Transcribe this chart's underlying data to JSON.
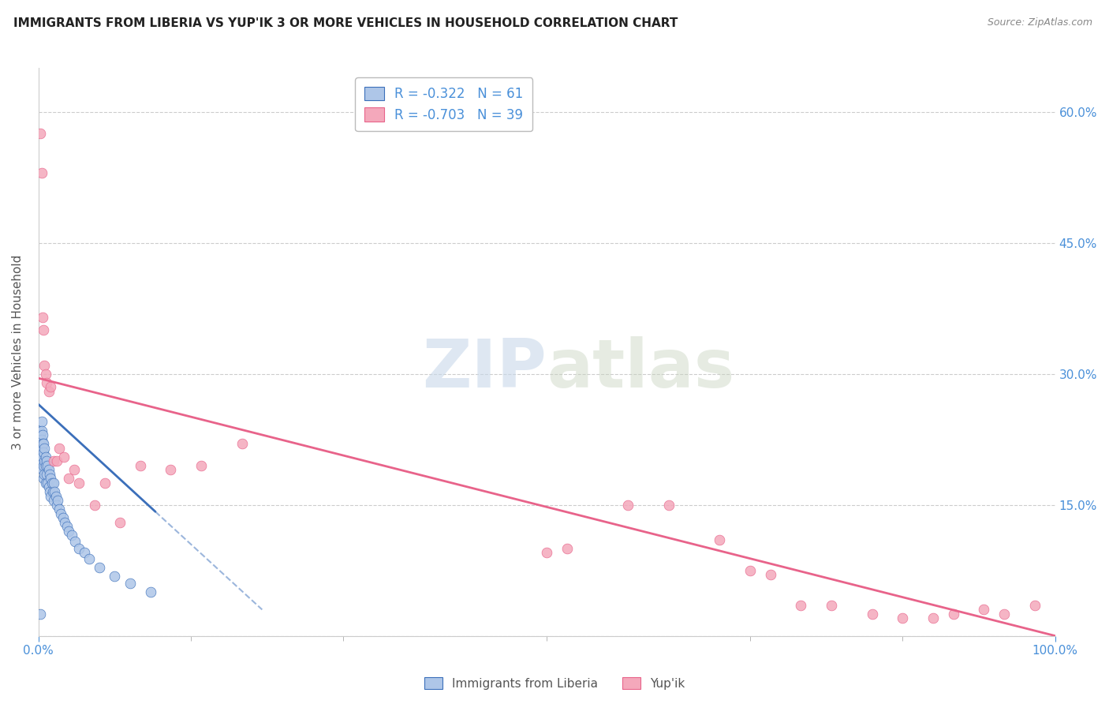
{
  "title": "IMMIGRANTS FROM LIBERIA VS YUP'IK 3 OR MORE VEHICLES IN HOUSEHOLD CORRELATION CHART",
  "source": "Source: ZipAtlas.com",
  "ylabel": "3 or more Vehicles in Household",
  "xlim": [
    0.0,
    1.0
  ],
  "ylim": [
    0.0,
    0.65
  ],
  "color_blue": "#aec6e8",
  "color_pink": "#f4a8bb",
  "line_blue": "#3b6fba",
  "line_pink": "#e8638a",
  "R_blue": -0.322,
  "N_blue": 61,
  "R_pink": -0.703,
  "N_pink": 39,
  "watermark_zip": "ZIP",
  "watermark_atlas": "atlas",
  "title_color": "#222222",
  "axis_color": "#4a90d9",
  "legend_label_blue": "Immigrants from Liberia",
  "legend_label_pink": "Yup'ik",
  "blue_x": [
    0.001,
    0.001,
    0.001,
    0.001,
    0.002,
    0.002,
    0.002,
    0.002,
    0.003,
    0.003,
    0.003,
    0.003,
    0.003,
    0.004,
    0.004,
    0.004,
    0.004,
    0.005,
    0.005,
    0.005,
    0.005,
    0.006,
    0.006,
    0.006,
    0.007,
    0.007,
    0.007,
    0.008,
    0.008,
    0.009,
    0.009,
    0.01,
    0.01,
    0.011,
    0.011,
    0.012,
    0.012,
    0.013,
    0.014,
    0.015,
    0.015,
    0.016,
    0.017,
    0.018,
    0.019,
    0.02,
    0.022,
    0.024,
    0.026,
    0.028,
    0.03,
    0.033,
    0.036,
    0.04,
    0.045,
    0.05,
    0.06,
    0.075,
    0.09,
    0.11,
    0.002
  ],
  "blue_y": [
    0.235,
    0.22,
    0.21,
    0.195,
    0.23,
    0.225,
    0.215,
    0.2,
    0.245,
    0.235,
    0.225,
    0.215,
    0.2,
    0.23,
    0.22,
    0.205,
    0.19,
    0.22,
    0.21,
    0.195,
    0.18,
    0.215,
    0.2,
    0.185,
    0.205,
    0.195,
    0.175,
    0.2,
    0.185,
    0.195,
    0.175,
    0.19,
    0.17,
    0.185,
    0.165,
    0.18,
    0.16,
    0.175,
    0.165,
    0.175,
    0.155,
    0.165,
    0.16,
    0.15,
    0.155,
    0.145,
    0.14,
    0.135,
    0.13,
    0.125,
    0.12,
    0.115,
    0.108,
    0.1,
    0.095,
    0.088,
    0.078,
    0.068,
    0.06,
    0.05,
    0.025
  ],
  "pink_x": [
    0.002,
    0.003,
    0.004,
    0.005,
    0.006,
    0.007,
    0.008,
    0.01,
    0.012,
    0.015,
    0.018,
    0.02,
    0.025,
    0.03,
    0.035,
    0.04,
    0.055,
    0.065,
    0.08,
    0.1,
    0.13,
    0.16,
    0.2,
    0.5,
    0.52,
    0.58,
    0.62,
    0.67,
    0.7,
    0.72,
    0.75,
    0.78,
    0.82,
    0.85,
    0.88,
    0.9,
    0.93,
    0.95,
    0.98
  ],
  "pink_y": [
    0.575,
    0.53,
    0.365,
    0.35,
    0.31,
    0.3,
    0.29,
    0.28,
    0.285,
    0.2,
    0.2,
    0.215,
    0.205,
    0.18,
    0.19,
    0.175,
    0.15,
    0.175,
    0.13,
    0.195,
    0.19,
    0.195,
    0.22,
    0.095,
    0.1,
    0.15,
    0.15,
    0.11,
    0.075,
    0.07,
    0.035,
    0.035,
    0.025,
    0.02,
    0.02,
    0.025,
    0.03,
    0.025,
    0.035
  ],
  "blue_line_x_start": 0.0,
  "blue_line_x_solid_end": 0.115,
  "blue_line_x_dashed_end": 0.22,
  "blue_line_y_start": 0.265,
  "blue_line_y_end": 0.03,
  "pink_line_x_start": 0.0,
  "pink_line_x_end": 1.0,
  "pink_line_y_start": 0.295,
  "pink_line_y_end": 0.0
}
